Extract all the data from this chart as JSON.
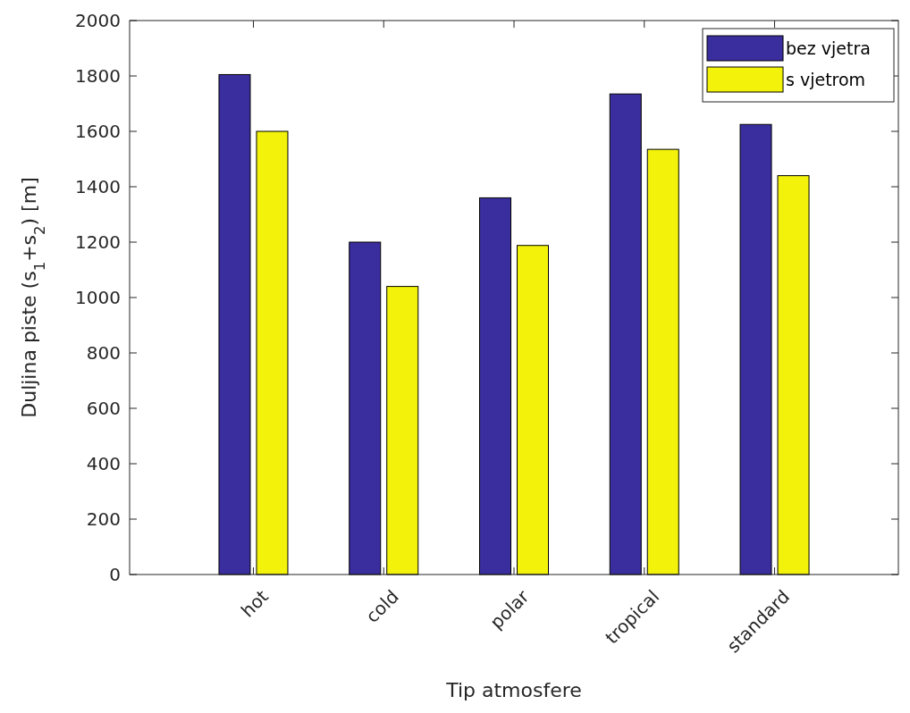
{
  "chart_data": {
    "type": "bar",
    "xlabel": "Tip atmosfere",
    "ylabel": "Duljina piste (s$_{1}$+s$_{2}$) [m]",
    "categories": [
      "hot",
      "cold",
      "polar",
      "tropical",
      "standard"
    ],
    "series": [
      {
        "name": "bez vjetra",
        "color": "#3a2d9e",
        "values": [
          1805,
          1200,
          1360,
          1735,
          1625
        ]
      },
      {
        "name": "s vjetrom",
        "color": "#f2f20a",
        "values": [
          1600,
          1040,
          1188,
          1535,
          1440
        ]
      }
    ],
    "ylim": [
      0,
      2000
    ],
    "yticks": [
      0,
      200,
      400,
      600,
      800,
      1000,
      1200,
      1400,
      1600,
      1800,
      2000
    ],
    "grid": false,
    "legend": "top right"
  }
}
